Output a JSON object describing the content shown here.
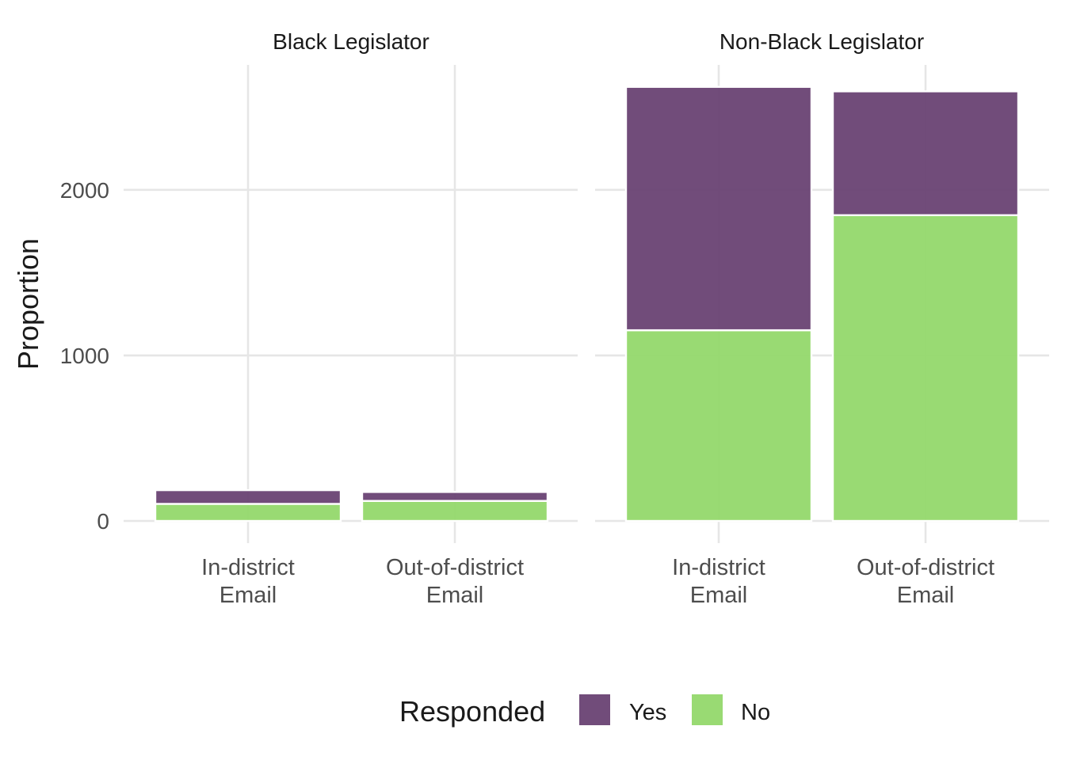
{
  "chart_data": {
    "type": "bar",
    "stacked": true,
    "facet_by": "legislator",
    "ylabel": "Proportion",
    "xlabel": "",
    "ylim": [
      0,
      2650
    ],
    "y_ticks": [
      0,
      1000,
      2000
    ],
    "grid": true,
    "legend": {
      "title": "Responded",
      "position": "bottom",
      "entries": [
        {
          "name": "Yes",
          "color": "#6b4575"
        },
        {
          "name": "No",
          "color": "#95d86d"
        }
      ]
    },
    "panels": [
      {
        "title": "Black Legislator",
        "categories": [
          "In-district\nEmail",
          "Out-of-district\nEmail"
        ],
        "series": [
          {
            "name": "No",
            "values": [
              103,
              121
            ]
          },
          {
            "name": "Yes",
            "values": [
              83,
              54
            ]
          }
        ]
      },
      {
        "title": "Non-Black Legislator",
        "categories": [
          "In-district\nEmail",
          "Out-of-district\nEmail"
        ],
        "series": [
          {
            "name": "No",
            "values": [
              1152,
              1847
            ]
          },
          {
            "name": "Yes",
            "values": [
              1470,
              748
            ]
          }
        ]
      }
    ]
  },
  "colors": {
    "yes": "#6b4575",
    "no": "#95d86d",
    "grid": "#e6e6e6",
    "axis_text": "#4d4d4d",
    "title_text": "#1a1a1a"
  }
}
